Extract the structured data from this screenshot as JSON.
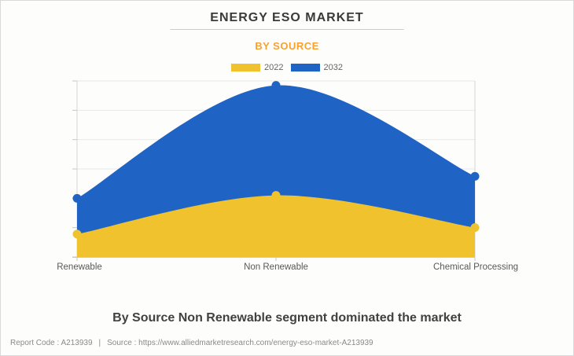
{
  "page": {
    "title": "ENERGY ESO MARKET",
    "group_label": "BY SOURCE",
    "caption": "By Source Non Renewable segment dominated the market",
    "footer_report": "Report Code : A213939",
    "footer_separator": "|",
    "footer_source": "Source : https://www.alliedmarketresearch.com/energy-eso-market-A213939"
  },
  "legend": {
    "items": [
      {
        "label": "2022",
        "color": "#F0C32E"
      },
      {
        "label": "2032",
        "color": "#1F64C5"
      }
    ]
  },
  "chart_data": {
    "type": "area",
    "title": "ENERGY ESO MARKET",
    "subtitle": "BY SOURCE",
    "categories": [
      "Renewable",
      "Non Renewable",
      "Chemical Processing"
    ],
    "series": [
      {
        "name": "2032",
        "color": "#1F64C5",
        "values": [
          2.0,
          5.85,
          2.75
        ]
      },
      {
        "name": "2022",
        "color": "#F0C32E",
        "values": [
          0.78,
          2.1,
          1.0
        ]
      }
    ],
    "ylim": [
      0,
      6
    ],
    "y_axis_labels_shown": false,
    "grid": true,
    "legend_position": "top",
    "xlabel": "",
    "ylabel": "",
    "marker_radius": 5.5,
    "colors": {
      "gridline": "#E8E8E8",
      "axis": "#C8C8C8",
      "plot_border": "#D5D5D5"
    }
  }
}
